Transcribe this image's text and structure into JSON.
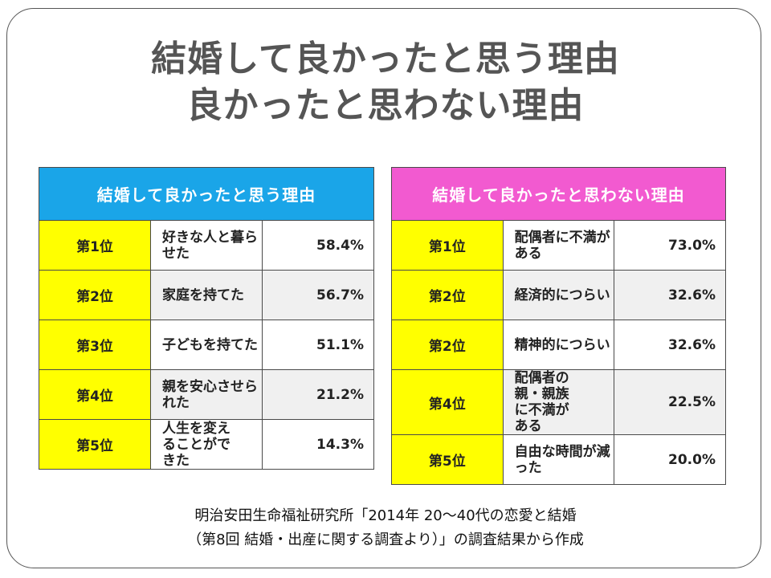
{
  "title": {
    "line1": "結婚して良かったと思う理由",
    "line2": "良かったと思わない理由"
  },
  "left_table": {
    "header": "結婚して良かったと思う理由",
    "rows": [
      {
        "rank": "第1位",
        "reason": "好きな人と暮らせた",
        "percent": "58.4%"
      },
      {
        "rank": "第2位",
        "reason": "家庭を持てた",
        "percent": "56.7%"
      },
      {
        "rank": "第3位",
        "reason": "子どもを持てた",
        "percent": "51.1%"
      },
      {
        "rank": "第4位",
        "reason": "親を安心させられた",
        "percent": "21.2%"
      },
      {
        "rank": "第5位",
        "reason": "人生を変えることができた",
        "percent": "14.3%"
      }
    ]
  },
  "right_table": {
    "header": "結婚して良かったと思わない理由",
    "rows": [
      {
        "rank": "第1位",
        "reason": "配偶者に不満がある",
        "percent": "73.0%"
      },
      {
        "rank": "第2位",
        "reason": "経済的につらい",
        "percent": "32.6%"
      },
      {
        "rank": "第2位",
        "reason": "精神的につらい",
        "percent": "32.6%"
      },
      {
        "rank": "第4位",
        "reason": "配偶者の親・親族に不満がある",
        "percent": "22.5%"
      },
      {
        "rank": "第5位",
        "reason": "自由な時間が減った",
        "percent": "20.0%"
      }
    ]
  },
  "source": {
    "line1": "明治安田生命福祉研究所「2014年 20～40代の恋愛と結婚",
    "line2": "（第8回 結婚・出産に関する調査より）」の調査結果から作成"
  },
  "colors": {
    "left_header": "#1aa5e8",
    "right_header": "#f25ad0",
    "rank_cell": "#ffff00",
    "title_text": "#555555"
  }
}
